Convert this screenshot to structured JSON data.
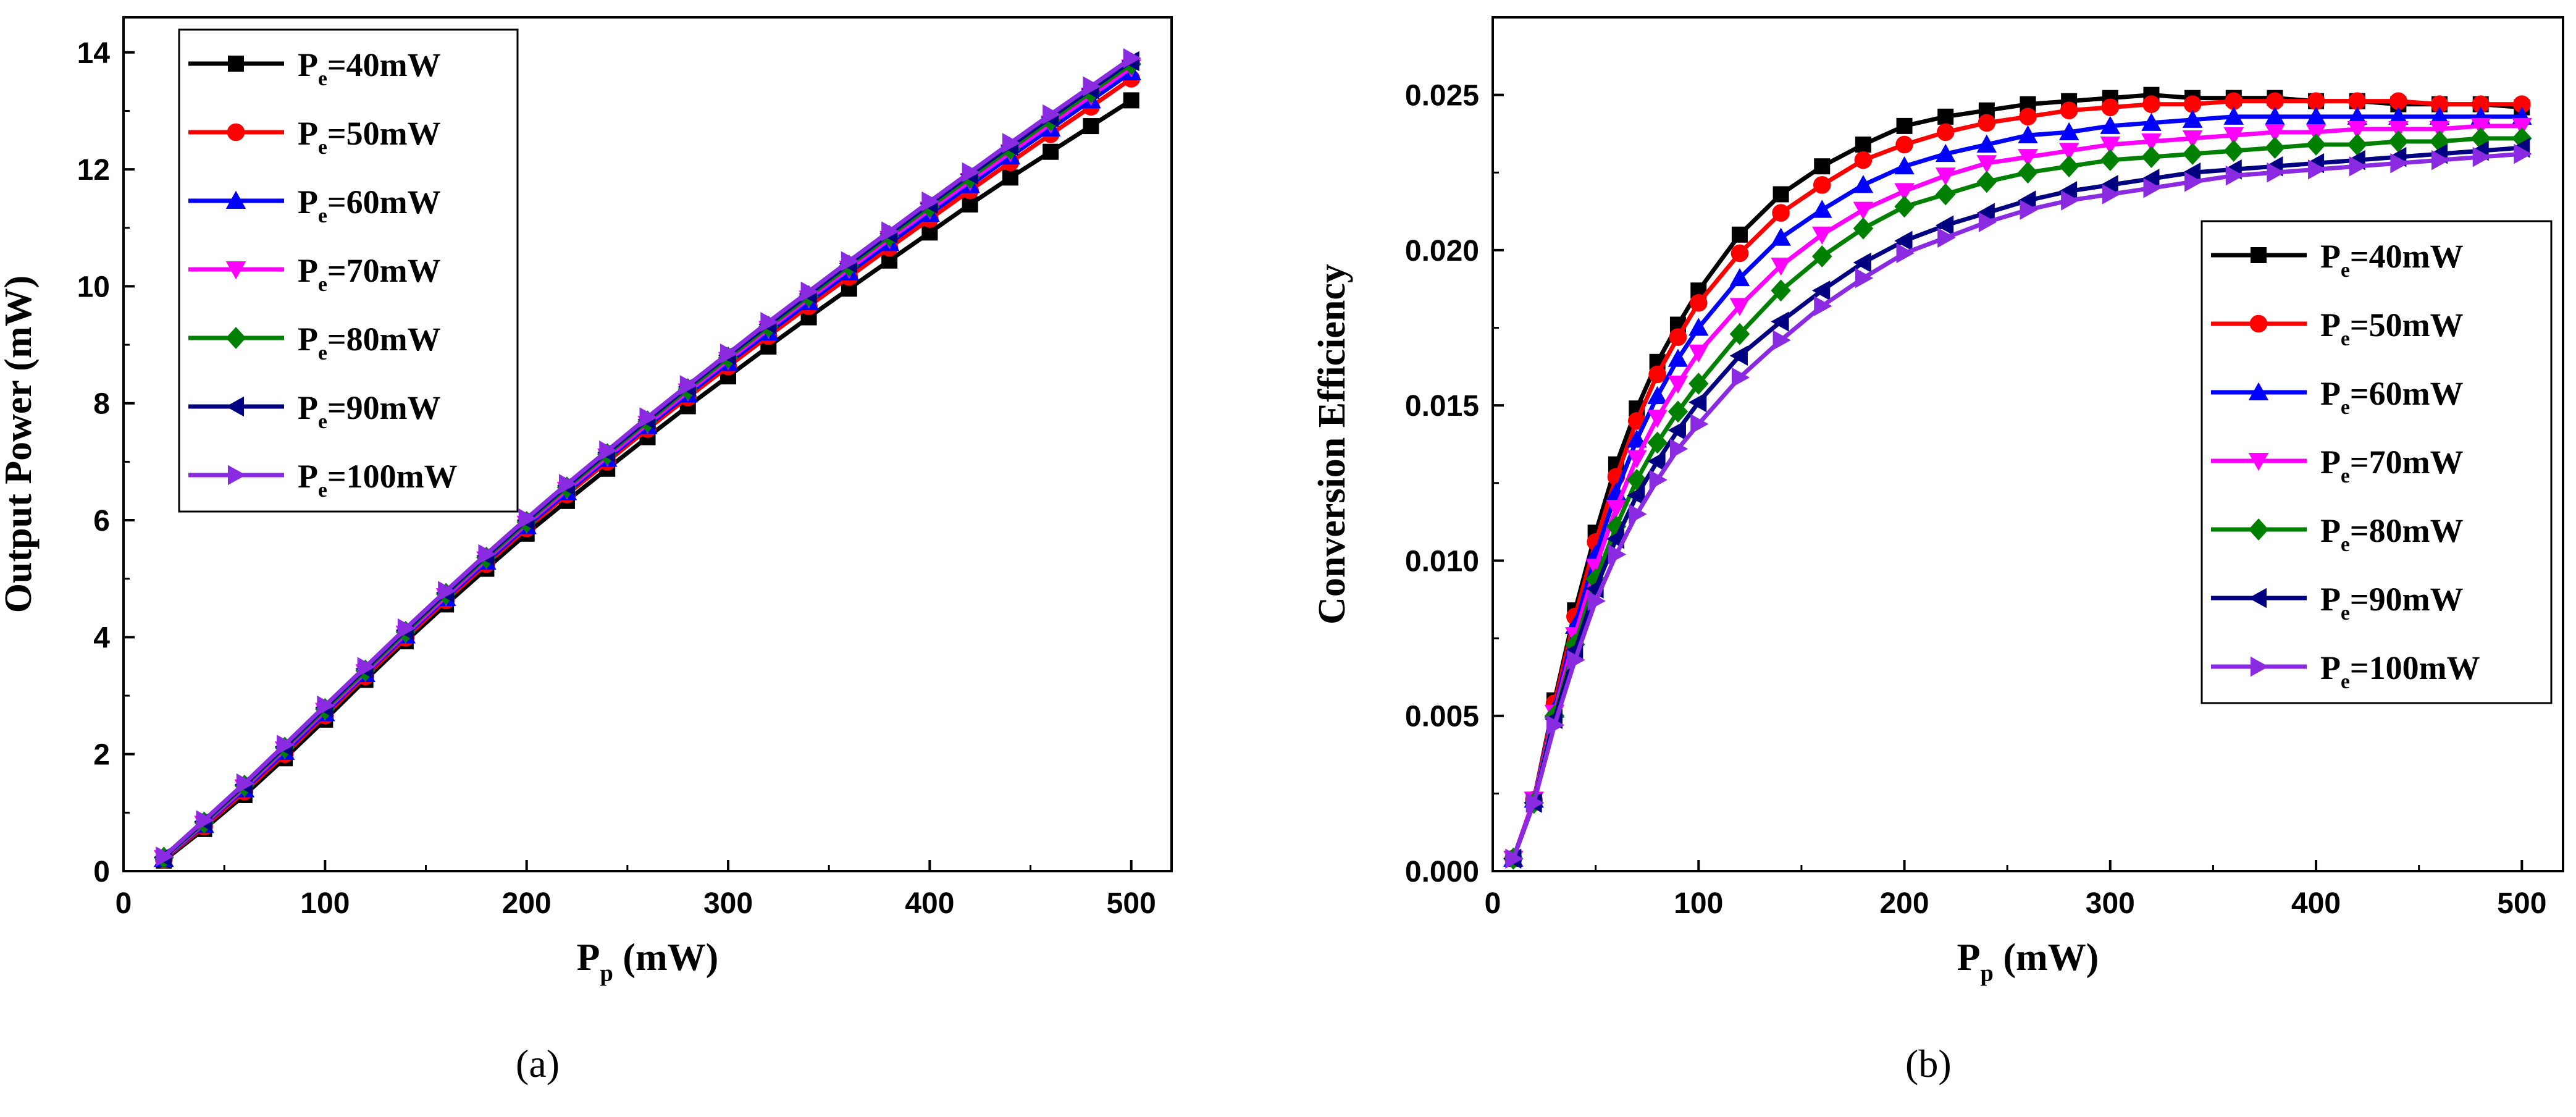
{
  "chart_data": [
    {
      "type": "line",
      "panel_label": "(a)",
      "xlabel_main": "P",
      "xlabel_sub": "p",
      "xlabel_rest": " (mW)",
      "ylabel": "Output Power (mW)",
      "xlim": [
        0,
        520
      ],
      "ylim": [
        0,
        14.6
      ],
      "xticks": [
        0,
        100,
        200,
        300,
        400,
        500
      ],
      "yticks": [
        0,
        2,
        4,
        6,
        8,
        10,
        12,
        14
      ],
      "x": [
        20,
        40,
        60,
        80,
        100,
        120,
        140,
        160,
        180,
        200,
        220,
        240,
        260,
        280,
        300,
        320,
        340,
        360,
        380,
        400,
        420,
        440,
        460,
        480,
        500
      ],
      "legend_position": "top-left",
      "series": [
        {
          "legend_main": "P",
          "legend_sub": "e",
          "legend_rest": "=40mW",
          "color": "#000000",
          "marker": "square",
          "values": [
            0.18,
            0.72,
            1.3,
            1.93,
            2.59,
            3.27,
            3.93,
            4.56,
            5.17,
            5.77,
            6.33,
            6.88,
            7.42,
            7.95,
            8.46,
            8.97,
            9.47,
            9.96,
            10.44,
            10.92,
            11.4,
            11.86,
            12.3,
            12.74,
            13.18
          ]
        },
        {
          "legend_main": "P",
          "legend_sub": "e",
          "legend_rest": "=50mW",
          "color": "#ff0000",
          "marker": "circle",
          "values": [
            0.2,
            0.76,
            1.36,
            2.0,
            2.66,
            3.33,
            3.99,
            4.63,
            5.25,
            5.86,
            6.44,
            7.0,
            7.56,
            8.1,
            8.63,
            9.15,
            9.66,
            10.16,
            10.66,
            11.15,
            11.64,
            12.12,
            12.6,
            13.07,
            13.55
          ]
        },
        {
          "legend_main": "P",
          "legend_sub": "e",
          "legend_rest": "=60mW",
          "color": "#0000ff",
          "marker": "triangle-up",
          "values": [
            0.21,
            0.79,
            1.4,
            2.04,
            2.7,
            3.37,
            4.03,
            4.67,
            5.29,
            5.9,
            6.48,
            7.05,
            7.61,
            8.15,
            8.69,
            9.21,
            9.73,
            10.24,
            10.74,
            11.24,
            11.73,
            12.22,
            12.7,
            13.18,
            13.66
          ]
        },
        {
          "legend_main": "P",
          "legend_sub": "e",
          "legend_rest": "=70mW",
          "color": "#ff00ff",
          "marker": "triangle-down",
          "values": [
            0.22,
            0.81,
            1.43,
            2.08,
            2.74,
            3.4,
            4.06,
            4.7,
            5.33,
            5.94,
            6.52,
            7.09,
            7.65,
            8.2,
            8.74,
            9.27,
            9.79,
            10.3,
            10.81,
            11.31,
            11.8,
            12.29,
            12.78,
            13.26,
            13.74
          ]
        },
        {
          "legend_main": "P",
          "legend_sub": "e",
          "legend_rest": "=80mW",
          "color": "#008000",
          "marker": "diamond",
          "values": [
            0.23,
            0.83,
            1.46,
            2.11,
            2.77,
            3.43,
            4.09,
            4.74,
            5.36,
            5.97,
            6.56,
            7.13,
            7.69,
            8.24,
            8.78,
            9.31,
            9.83,
            10.35,
            10.86,
            11.36,
            11.86,
            12.35,
            12.84,
            13.32,
            13.8
          ]
        },
        {
          "legend_main": "P",
          "legend_sub": "e",
          "legend_rest": "=90mW",
          "color": "#000080",
          "marker": "triangle-left",
          "values": [
            0.24,
            0.85,
            1.48,
            2.13,
            2.8,
            3.46,
            4.12,
            4.76,
            5.39,
            6.0,
            6.59,
            7.16,
            7.72,
            8.28,
            8.82,
            9.35,
            9.87,
            10.39,
            10.9,
            11.41,
            11.91,
            12.4,
            12.89,
            13.37,
            13.85
          ]
        },
        {
          "legend_main": "P",
          "legend_sub": "e",
          "legend_rest": "=100mW",
          "color": "#8a2be2",
          "marker": "triangle-right",
          "values": [
            0.25,
            0.87,
            1.5,
            2.16,
            2.83,
            3.49,
            4.15,
            4.79,
            5.42,
            6.03,
            6.62,
            7.19,
            7.76,
            8.31,
            8.85,
            9.39,
            9.91,
            10.43,
            10.94,
            11.45,
            11.95,
            12.45,
            12.94,
            13.42,
            13.9
          ]
        }
      ]
    },
    {
      "type": "line",
      "panel_label": "(b)",
      "xlabel_main": "P",
      "xlabel_sub": "p",
      "xlabel_rest": " (mW)",
      "ylabel": "Conversion Efficiency",
      "xlim": [
        0,
        520
      ],
      "ylim": [
        0,
        0.0275
      ],
      "xticks": [
        0,
        100,
        200,
        300,
        400,
        500
      ],
      "yticks": [
        0,
        0.005,
        0.01,
        0.015,
        0.02,
        0.025
      ],
      "ytick_labels": [
        "0.000",
        "0.005",
        "0.010",
        "0.015",
        "0.020",
        "0.025"
      ],
      "x": [
        10,
        20,
        30,
        40,
        50,
        60,
        70,
        80,
        90,
        100,
        120,
        140,
        160,
        180,
        200,
        220,
        240,
        260,
        280,
        300,
        320,
        340,
        360,
        380,
        400,
        420,
        440,
        460,
        480,
        500
      ],
      "legend_position": "right",
      "series": [
        {
          "legend_main": "P",
          "legend_sub": "e",
          "legend_rest": "=40mW",
          "color": "#000000",
          "marker": "square",
          "values": [
            0.0004,
            0.0023,
            0.0055,
            0.0084,
            0.0109,
            0.0131,
            0.0149,
            0.0164,
            0.0176,
            0.0187,
            0.0205,
            0.0218,
            0.0227,
            0.0234,
            0.024,
            0.0243,
            0.0245,
            0.0247,
            0.0248,
            0.0249,
            0.025,
            0.0249,
            0.0249,
            0.0249,
            0.0248,
            0.0248,
            0.0247,
            0.0247,
            0.0247,
            0.0246
          ]
        },
        {
          "legend_main": "P",
          "legend_sub": "e",
          "legend_rest": "=50mW",
          "color": "#ff0000",
          "marker": "circle",
          "values": [
            0.0004,
            0.0023,
            0.0054,
            0.0082,
            0.0106,
            0.0127,
            0.0145,
            0.016,
            0.0172,
            0.0183,
            0.0199,
            0.0212,
            0.0221,
            0.0229,
            0.0234,
            0.0238,
            0.0241,
            0.0243,
            0.0245,
            0.0246,
            0.0247,
            0.0247,
            0.0248,
            0.0248,
            0.0248,
            0.0248,
            0.0248,
            0.0247,
            0.0247,
            0.0247
          ]
        },
        {
          "legend_main": "P",
          "legend_sub": "e",
          "legend_rest": "=60mW",
          "color": "#0000ff",
          "marker": "triangle-up",
          "values": [
            0.0004,
            0.0023,
            0.0052,
            0.0079,
            0.0102,
            0.0122,
            0.0139,
            0.0153,
            0.0165,
            0.0175,
            0.0191,
            0.0204,
            0.0213,
            0.0221,
            0.0227,
            0.0231,
            0.0234,
            0.0237,
            0.0238,
            0.024,
            0.0241,
            0.0242,
            0.0243,
            0.0243,
            0.0243,
            0.0243,
            0.0243,
            0.0243,
            0.0243,
            0.0243
          ]
        },
        {
          "legend_main": "P",
          "legend_sub": "e",
          "legend_rest": "=70mW",
          "color": "#ff00ff",
          "marker": "triangle-down",
          "values": [
            0.0004,
            0.0023,
            0.0051,
            0.0076,
            0.0098,
            0.0117,
            0.0133,
            0.0146,
            0.0157,
            0.0167,
            0.0182,
            0.0195,
            0.0205,
            0.0213,
            0.0219,
            0.0224,
            0.0228,
            0.023,
            0.0232,
            0.0234,
            0.0235,
            0.0236,
            0.0237,
            0.0238,
            0.0238,
            0.0239,
            0.0239,
            0.0239,
            0.024,
            0.024
          ]
        },
        {
          "legend_main": "P",
          "legend_sub": "e",
          "legend_rest": "=80mW",
          "color": "#008000",
          "marker": "diamond",
          "values": [
            0.0004,
            0.0022,
            0.005,
            0.0073,
            0.0094,
            0.0111,
            0.0126,
            0.0138,
            0.0148,
            0.0157,
            0.0173,
            0.0187,
            0.0198,
            0.0207,
            0.0214,
            0.0218,
            0.0222,
            0.0225,
            0.0227,
            0.0229,
            0.023,
            0.0231,
            0.0232,
            0.0233,
            0.0234,
            0.0234,
            0.0235,
            0.0235,
            0.0236,
            0.0236
          ]
        },
        {
          "legend_main": "P",
          "legend_sub": "e",
          "legend_rest": "=90mW",
          "color": "#000080",
          "marker": "triangle-left",
          "values": [
            0.0004,
            0.0022,
            0.0049,
            0.0071,
            0.0091,
            0.0107,
            0.0121,
            0.0132,
            0.0142,
            0.0151,
            0.0166,
            0.0177,
            0.0187,
            0.0196,
            0.0203,
            0.0208,
            0.0212,
            0.0216,
            0.0219,
            0.0221,
            0.0223,
            0.0225,
            0.0226,
            0.0227,
            0.0228,
            0.0229,
            0.023,
            0.0231,
            0.0232,
            0.0233
          ]
        },
        {
          "legend_main": "P",
          "legend_sub": "e",
          "legend_rest": "=100mW",
          "color": "#8a2be2",
          "marker": "triangle-right",
          "values": [
            0.0004,
            0.0022,
            0.0047,
            0.0068,
            0.0087,
            0.0102,
            0.0115,
            0.0126,
            0.0136,
            0.0144,
            0.0159,
            0.0171,
            0.0182,
            0.0191,
            0.0199,
            0.0204,
            0.0209,
            0.0213,
            0.0216,
            0.0218,
            0.022,
            0.0222,
            0.0224,
            0.0225,
            0.0226,
            0.0227,
            0.0228,
            0.0229,
            0.023,
            0.0231
          ]
        }
      ]
    }
  ]
}
